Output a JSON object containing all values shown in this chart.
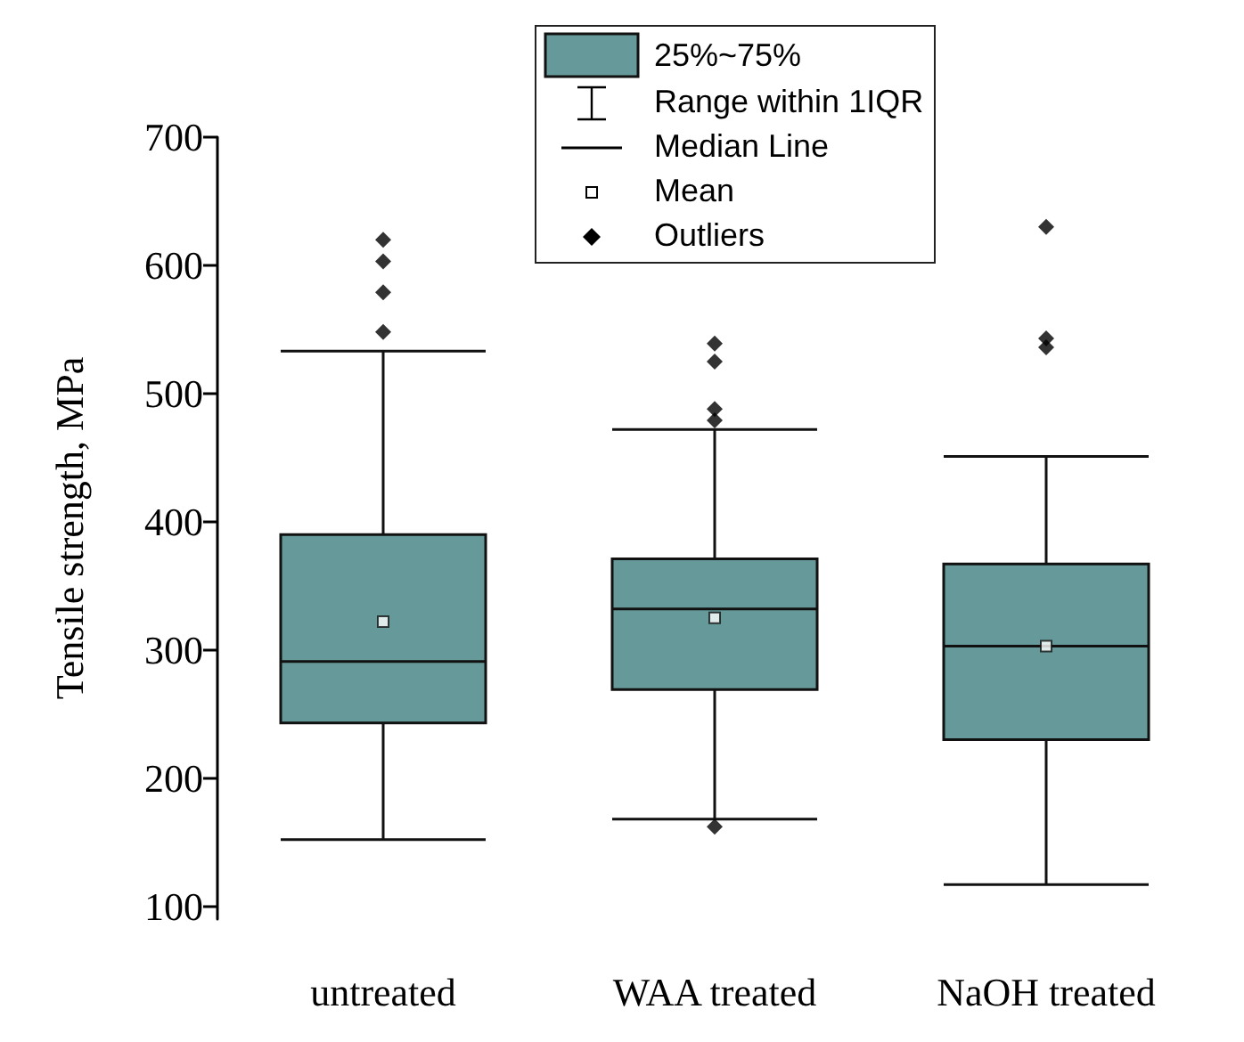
{
  "chart_data": {
    "type": "box",
    "ylabel": "Tensile strength, MPa",
    "categories": [
      "untreated",
      "WAA treated",
      "NaOH treated"
    ],
    "series": [
      {
        "name": "25%~75%",
        "color": "#669999",
        "boxes": [
          {
            "low": 152,
            "q1": 243,
            "median": 291,
            "q3": 390,
            "high": 533,
            "mean": 322,
            "outliers": [
              548,
              579,
              603,
              620
            ]
          },
          {
            "low": 168,
            "q1": 269,
            "median": 332,
            "q3": 371,
            "high": 472,
            "mean": 325,
            "outliers": [
              162,
              479,
              488,
              525,
              539
            ]
          },
          {
            "low": 117,
            "q1": 230,
            "median": 303,
            "q3": 367,
            "high": 451,
            "mean": 303,
            "outliers": [
              536,
              543,
              630
            ]
          }
        ]
      }
    ],
    "annotations": [
      "Range within 1IQR",
      "Median Line",
      "Mean",
      "Outliers"
    ],
    "ylim": [
      90,
      700
    ],
    "yticks": [
      100,
      200,
      300,
      400,
      500,
      600,
      700
    ],
    "legend": "top",
    "grid": false,
    "marker": "diamond"
  }
}
